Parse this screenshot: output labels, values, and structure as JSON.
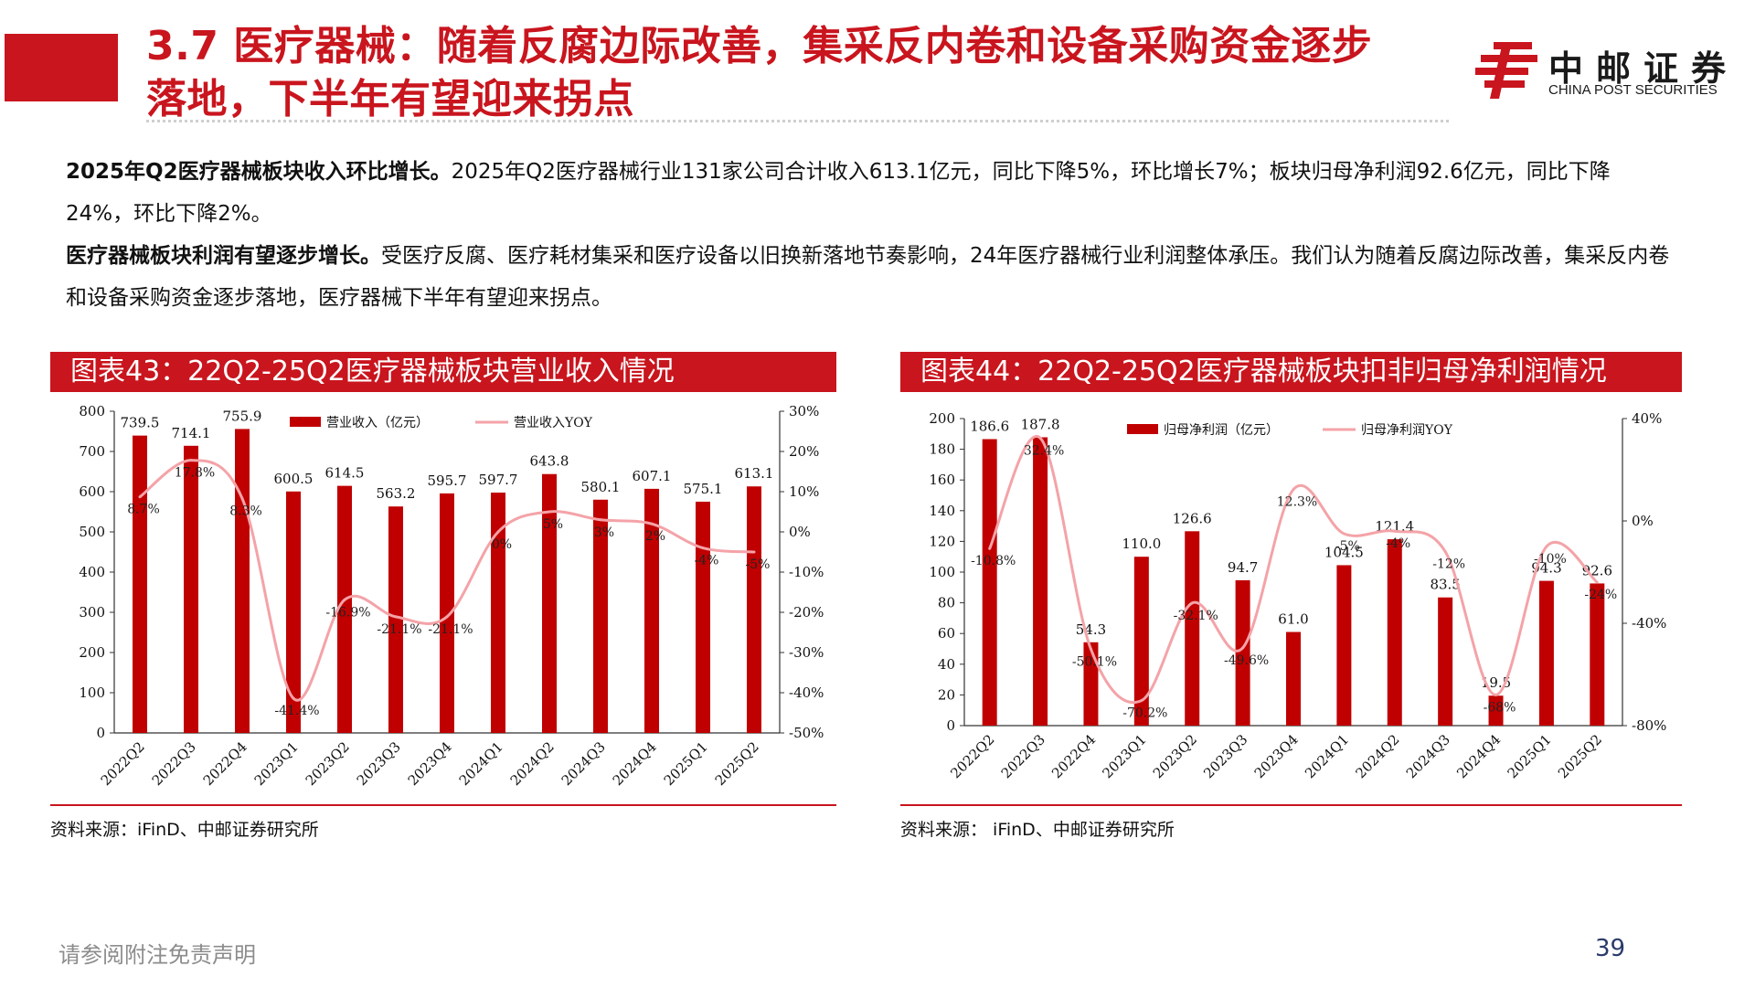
{
  "header": {
    "title_line1": "3.7 医疗器械：随着反腐边际改善，集采反内卷和设备采购资金逐步",
    "title_line2": "落地，下半年有望迎来拐点",
    "logo_cn": "中邮证券",
    "logo_en": "CHINA POST SECURITIES"
  },
  "body": {
    "p1_bold": "2025年Q2医疗器械板块收入环比增长。",
    "p1_text": "2025年Q2医疗器械行业131家公司合计收入613.1亿元，同比下降5%，环比增长7%；板块归母净利润92.6亿元，同比下降24%，环比下降2%。",
    "p2_bold": "医疗器械板块利润有望逐步增长。",
    "p2_text": "受医疗反腐、医疗耗材集采和医疗设备以旧换新落地节奏影响，24年医疗器械行业利润整体承压。我们认为随着反腐边际改善，集采反内卷和设备采购资金逐步落地，医疗器械下半年有望迎来拐点。"
  },
  "footer": {
    "disclaimer": "请参阅附注免责声明",
    "page": "39"
  },
  "colors": {
    "accent": "#c9151e",
    "bar": "#c00000",
    "line": "#f4a3a8"
  },
  "chart_data": [
    {
      "type": "bar",
      "title": "图表43：22Q2-25Q2医疗器械板块营业收入情况",
      "source": "资料来源：iFinD、中邮证券研究所",
      "categories": [
        "2022Q2",
        "2022Q3",
        "2022Q4",
        "2023Q1",
        "2023Q2",
        "2023Q3",
        "2023Q4",
        "2024Q1",
        "2024Q2",
        "2024Q3",
        "2024Q4",
        "2025Q1",
        "2025Q2"
      ],
      "series": [
        {
          "name": "营业收入（亿元）",
          "type": "bar",
          "axis": "left",
          "values": [
            739.5,
            714.1,
            755.9,
            600.5,
            614.5,
            563.2,
            595.7,
            597.7,
            643.8,
            580.1,
            607.1,
            575.1,
            613.1
          ]
        },
        {
          "name": "营业收入YOY",
          "type": "line",
          "axis": "right",
          "values": [
            8.7,
            17.8,
            8.3,
            -41.4,
            -16.9,
            -21.1,
            -21.1,
            0,
            5,
            3,
            2,
            -4,
            -5
          ],
          "labels": [
            "8.7%",
            "17.8%",
            "8.3%",
            "-41.4%",
            "-16.9%",
            "-21.1%",
            "-21.1%",
            "0%",
            "5%",
            "3%",
            "2%",
            "-4%",
            "-5%"
          ]
        }
      ],
      "ylim": [
        0,
        800
      ],
      "yticks": [
        0,
        100,
        200,
        300,
        400,
        500,
        600,
        700,
        800
      ],
      "y2lim": [
        -50,
        30
      ],
      "y2ticks": [
        "30%",
        "20%",
        "10%",
        "0%",
        "-10%",
        "-20%",
        "-30%",
        "-40%",
        "-50%"
      ],
      "legend": "top"
    },
    {
      "type": "bar",
      "title": "图表44：22Q2-25Q2医疗器械板块扣非归母净利润情况",
      "source": "资料来源： iFinD、中邮证券研究所",
      "categories": [
        "2022Q2",
        "2022Q3",
        "2022Q4",
        "2023Q1",
        "2023Q2",
        "2023Q3",
        "2023Q4",
        "2024Q1",
        "2024Q2",
        "2024Q3",
        "2024Q4",
        "2025Q1",
        "2025Q2"
      ],
      "series": [
        {
          "name": "归母净利润（亿元）",
          "type": "bar",
          "axis": "left",
          "values": [
            186.6,
            187.8,
            54.3,
            110.0,
            126.6,
            94.7,
            61.0,
            104.5,
            121.4,
            83.5,
            19.5,
            94.3,
            92.6
          ]
        },
        {
          "name": "归母净利润YOY",
          "type": "line",
          "axis": "right",
          "values": [
            -10.8,
            32.4,
            -50.1,
            -70.2,
            -32.1,
            -49.6,
            12.3,
            -5,
            -4,
            -12,
            -68,
            -10,
            -24
          ],
          "labels": [
            "-10.8%",
            "32.4%",
            "-50.1%",
            "-70.2%",
            "-32.1%",
            "-49.6%",
            "12.3%",
            "-5%",
            "-4%",
            "-12%",
            "-68%",
            "-10%",
            "-24%"
          ]
        }
      ],
      "ylim": [
        0,
        200
      ],
      "yticks": [
        0,
        20,
        40,
        60,
        80,
        100,
        120,
        140,
        160,
        180,
        200
      ],
      "y2lim": [
        -80,
        40
      ],
      "y2ticks": [
        "40%",
        "0%",
        "-40%",
        "-80%"
      ],
      "legend": "top"
    }
  ]
}
